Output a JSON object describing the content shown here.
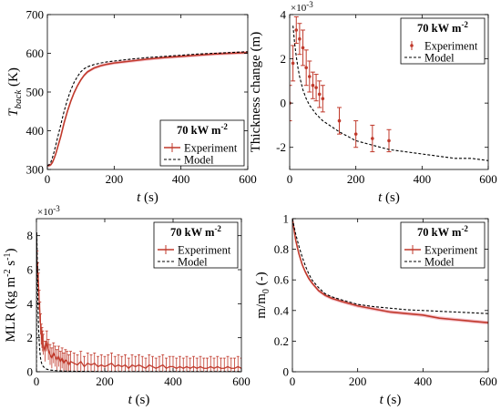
{
  "colors": {
    "experiment": "#c0392b",
    "experiment_band": "#f4b6c2",
    "model": "#000000",
    "axis": "#000000"
  },
  "chart_data": [
    {
      "id": "tback",
      "type": "line",
      "ylabel_main": "T",
      "ylabel_sub": "back",
      "ylabel_unit": "(K)",
      "xlabel": "t (s)",
      "xlim": [
        0,
        600
      ],
      "ylim": [
        300,
        700
      ],
      "xticks": [
        0,
        200,
        400,
        600
      ],
      "yticks": [
        300,
        400,
        500,
        600,
        700
      ],
      "ytick_labels": [
        "300",
        "400",
        "500",
        "600",
        "700"
      ],
      "exponent": "",
      "legend": {
        "placement": "bottom-right",
        "title": "70 kW m",
        "title_sup": "-2",
        "entries": [
          "Experiment",
          "Model"
        ]
      },
      "series": [
        {
          "name": "Experiment",
          "style": "line_band",
          "x": [
            0,
            5,
            10,
            15,
            20,
            25,
            30,
            40,
            50,
            60,
            70,
            80,
            90,
            100,
            110,
            120,
            140,
            160,
            180,
            200,
            250,
            300,
            350,
            400,
            450,
            500,
            550,
            600
          ],
          "y": [
            310,
            310,
            312,
            318,
            328,
            340,
            355,
            385,
            420,
            450,
            476,
            498,
            516,
            531,
            543,
            552,
            562,
            568,
            572,
            575,
            580,
            585,
            589,
            592,
            595,
            598,
            600,
            602
          ],
          "band": 4
        },
        {
          "name": "Model",
          "style": "dashed",
          "x": [
            0,
            5,
            10,
            15,
            20,
            25,
            30,
            40,
            50,
            60,
            70,
            80,
            90,
            100,
            110,
            120,
            140,
            160,
            180,
            200,
            250,
            300,
            350,
            400,
            450,
            500,
            550,
            600
          ],
          "y": [
            310,
            312,
            318,
            330,
            345,
            362,
            380,
            415,
            450,
            480,
            505,
            525,
            540,
            552,
            560,
            565,
            571,
            575,
            578,
            580,
            585,
            589,
            592,
            595,
            598,
            600,
            602,
            604
          ]
        }
      ]
    },
    {
      "id": "thickness",
      "type": "scatter",
      "ylabel": "Thickness change (m)",
      "xlabel": "t (s)",
      "xlim": [
        0,
        600
      ],
      "ylim": [
        -0.003,
        0.004
      ],
      "xticks": [
        0,
        200,
        400,
        600
      ],
      "yticks": [
        -0.002,
        0,
        0.002,
        0.004
      ],
      "ytick_labels": [
        "-2",
        "0",
        "2",
        "4"
      ],
      "exponent": "×10",
      "exponent_power": "-3",
      "legend": {
        "placement": "top-right",
        "title": "70 kW m",
        "title_sup": "-2",
        "entries": [
          "Experiment",
          "Model"
        ]
      },
      "series": [
        {
          "name": "Experiment",
          "style": "errorbar_points",
          "x": [
            0,
            10,
            20,
            30,
            40,
            50,
            60,
            70,
            80,
            90,
            100,
            150,
            200,
            250,
            300
          ],
          "y": [
            0.0,
            0.0018,
            0.0033,
            0.0029,
            0.0025,
            0.0016,
            0.0012,
            0.0008,
            0.0007,
            0.0004,
            0.0002,
            -0.0008,
            -0.0014,
            -0.0016,
            -0.0017
          ],
          "err": [
            0.0008,
            0.0008,
            0.0006,
            0.0007,
            0.0008,
            0.0008,
            0.0007,
            0.0006,
            0.0006,
            0.0006,
            0.0006,
            0.0006,
            0.0006,
            0.0006,
            0.0005
          ]
        },
        {
          "name": "Model",
          "style": "dashed",
          "x": [
            10,
            15,
            20,
            25,
            30,
            40,
            50,
            60,
            80,
            100,
            150,
            200,
            250,
            300,
            350,
            400,
            450,
            500,
            550,
            600
          ],
          "y": [
            0.0035,
            0.0027,
            0.0021,
            0.0016,
            0.0012,
            0.0006,
            0.0002,
            -0.0001,
            -0.0005,
            -0.0008,
            -0.0013,
            -0.0017,
            -0.0019,
            -0.0021,
            -0.0022,
            -0.0023,
            -0.0024,
            -0.0025,
            -0.0025,
            -0.0026
          ]
        }
      ]
    },
    {
      "id": "mlr",
      "type": "line",
      "ylabel": "MLR (kg m",
      "ylabel_sup1": "-2",
      "ylabel_mid": " s",
      "ylabel_sup2": "-1",
      "ylabel_end": ")",
      "xlabel": "t (s)",
      "xlim": [
        0,
        600
      ],
      "ylim": [
        0,
        0.009
      ],
      "xticks": [
        0,
        200,
        400,
        600
      ],
      "yticks": [
        0,
        0.002,
        0.004,
        0.006,
        0.008
      ],
      "ytick_labels": [
        "0",
        "2",
        "4",
        "6",
        "8"
      ],
      "exponent": "×10",
      "exponent_power": "-3",
      "legend": {
        "placement": "top-right",
        "title": "70 kW m",
        "title_sup": "-2",
        "entries": [
          "Experiment",
          "Model"
        ]
      },
      "series": [
        {
          "name": "Experiment",
          "style": "line_errorbars",
          "x": [
            0,
            2,
            4,
            6,
            8,
            10,
            12,
            14,
            16,
            18,
            20,
            25,
            30,
            35,
            40,
            45,
            50,
            55,
            60,
            65,
            70,
            75,
            80,
            85,
            90,
            95,
            100,
            110,
            120,
            130,
            140,
            150,
            160,
            170,
            180,
            190,
            200,
            210,
            220,
            230,
            240,
            250,
            260,
            270,
            280,
            290,
            300,
            310,
            320,
            330,
            340,
            350,
            360,
            370,
            380,
            390,
            400,
            410,
            420,
            430,
            440,
            450,
            460,
            470,
            480,
            490,
            500,
            510,
            520,
            530,
            540,
            550,
            560,
            570,
            580,
            590,
            600
          ],
          "y": [
            0.006,
            0.0065,
            0.0058,
            0.0052,
            0.0042,
            0.0035,
            0.0028,
            0.0022,
            0.002,
            0.0018,
            0.0016,
            0.0012,
            0.0018,
            0.0013,
            0.001,
            0.0008,
            0.0011,
            0.0009,
            0.0007,
            0.0009,
            0.0006,
            0.0008,
            0.0005,
            0.0007,
            0.0006,
            0.0004,
            0.0006,
            0.0005,
            0.0004,
            0.0006,
            0.0003,
            0.0005,
            0.0004,
            0.0005,
            0.0003,
            0.0004,
            0.0003,
            0.0004,
            0.0005,
            0.0003,
            0.0004,
            0.0003,
            0.0004,
            0.0002,
            0.0004,
            0.0003,
            0.0004,
            0.0003,
            0.0002,
            0.0004,
            0.0003,
            0.0002,
            0.0003,
            0.0004,
            0.0002,
            0.0003,
            0.0003,
            0.0002,
            0.0003,
            0.0002,
            0.0003,
            0.0002,
            0.0003,
            0.0002,
            0.0003,
            0.0002,
            0.0002,
            0.0003,
            0.0002,
            0.0003,
            0.0002,
            0.0002,
            0.0003,
            0.0002,
            0.0002,
            0.0003,
            0.0002
          ],
          "err": 0.0006
        },
        {
          "name": "Model",
          "style": "dashed",
          "x": [
            0,
            1,
            2,
            3,
            4,
            5,
            6,
            8,
            10,
            12,
            15,
            20,
            30,
            40,
            60,
            80,
            100,
            150,
            200,
            300,
            400,
            500,
            600
          ],
          "y": [
            0.0,
            0.0082,
            0.0072,
            0.0058,
            0.0045,
            0.0035,
            0.0027,
            0.0018,
            0.0012,
            0.0008,
            0.0005,
            0.0003,
            0.00015,
            0.0001,
            6e-05,
            4e-05,
            3e-05,
            2e-05,
            1e-05,
            1e-05,
            1e-05,
            1e-05,
            1e-05
          ]
        }
      ]
    },
    {
      "id": "mass",
      "type": "line",
      "ylabel": "m/m",
      "ylabel_sub": "0",
      "ylabel_unit": " (-)",
      "xlabel": "t (s)",
      "xlim": [
        0,
        600
      ],
      "ylim": [
        0,
        1
      ],
      "xticks": [
        0,
        200,
        400,
        600
      ],
      "yticks": [
        0,
        0.2,
        0.4,
        0.6,
        0.8,
        1
      ],
      "ytick_labels": [
        "0",
        "0.2",
        "0.4",
        "0.6",
        "0.8",
        "1"
      ],
      "exponent": "",
      "legend": {
        "placement": "top-right",
        "title": "70 kW m",
        "title_sup": "-2",
        "entries": [
          "Experiment",
          "Model"
        ]
      },
      "series": [
        {
          "name": "Experiment",
          "style": "line_band",
          "x": [
            0,
            5,
            10,
            20,
            30,
            40,
            50,
            60,
            80,
            100,
            120,
            150,
            200,
            250,
            300,
            350,
            400,
            450,
            500,
            550,
            600
          ],
          "y": [
            1.0,
            0.93,
            0.86,
            0.77,
            0.7,
            0.65,
            0.61,
            0.58,
            0.53,
            0.5,
            0.48,
            0.46,
            0.43,
            0.41,
            0.39,
            0.38,
            0.37,
            0.35,
            0.34,
            0.33,
            0.32
          ],
          "band": 0.012
        },
        {
          "name": "Model",
          "style": "dashed",
          "x": [
            0,
            5,
            10,
            20,
            30,
            40,
            50,
            60,
            80,
            100,
            120,
            150,
            200,
            250,
            300,
            350,
            400,
            450,
            500,
            550,
            600
          ],
          "y": [
            1.0,
            0.95,
            0.9,
            0.82,
            0.75,
            0.69,
            0.64,
            0.6,
            0.55,
            0.51,
            0.49,
            0.47,
            0.44,
            0.425,
            0.415,
            0.405,
            0.4,
            0.395,
            0.39,
            0.385,
            0.38
          ]
        }
      ]
    }
  ]
}
